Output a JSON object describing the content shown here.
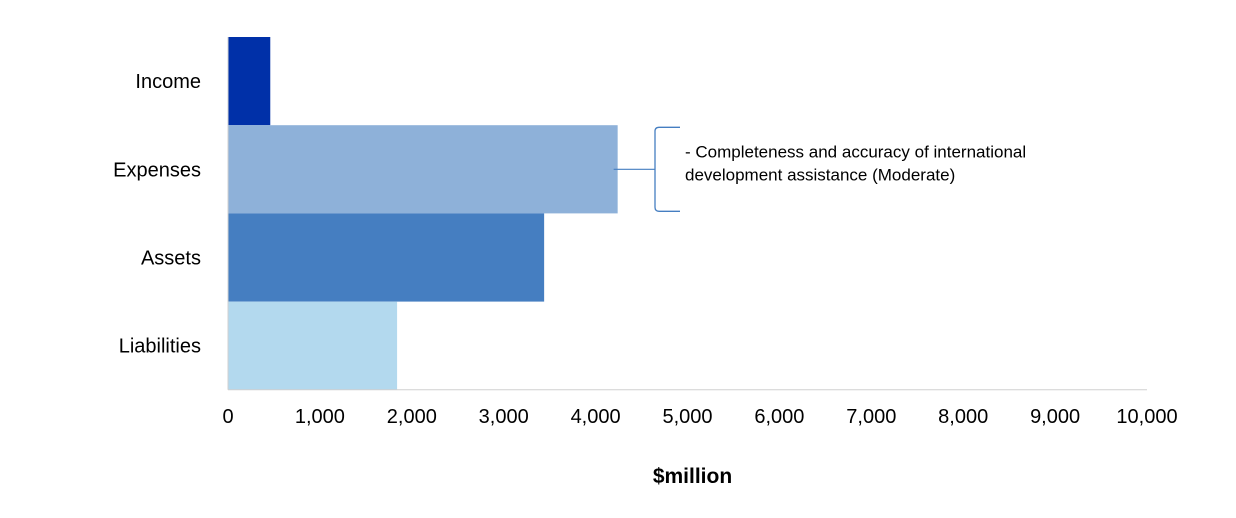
{
  "chart_data": {
    "type": "bar",
    "orientation": "horizontal",
    "categories": [
      "Income",
      "Expenses",
      "Assets",
      "Liabilities"
    ],
    "values": [
      460,
      4240,
      3440,
      1840
    ],
    "colors": [
      "#0030A8",
      "#8EB1D9",
      "#457EC1",
      "#B3D9EE"
    ],
    "xlabel": "$million",
    "ylabel": "",
    "xlim": [
      0,
      10000
    ],
    "xticks": [
      "0",
      "1,000",
      "2,000",
      "3,000",
      "4,000",
      "5,000",
      "6,000",
      "7,000",
      "8,000",
      "9,000",
      "10,000"
    ],
    "grid": false,
    "annotation": {
      "category": "Expenses",
      "lines": [
        "- Completeness and accuracy of international",
        "development assistance (Moderate)"
      ],
      "color": "#457EC1"
    }
  }
}
